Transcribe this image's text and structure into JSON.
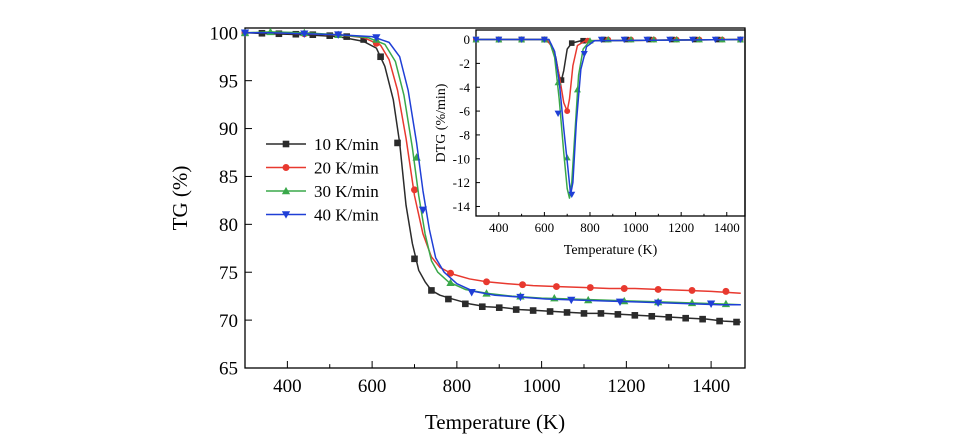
{
  "chart_data": [
    {
      "type": "line",
      "title": "",
      "xlabel": "Temperature (K)",
      "ylabel": "TG (%)",
      "xlim": [
        300,
        1480
      ],
      "ylim": [
        65,
        100.5
      ],
      "xticks": [
        400,
        600,
        800,
        1000,
        1200,
        1400
      ],
      "yticks": [
        65,
        70,
        75,
        80,
        85,
        90,
        95,
        100
      ],
      "legend_position": "middle-left",
      "grid": false,
      "series": [
        {
          "name": "10 K/min",
          "color": "#2b2b2b",
          "marker": "square",
          "x": [
            300,
            360,
            440,
            520,
            580,
            610,
            630,
            650,
            665,
            680,
            695,
            710,
            725,
            740,
            760,
            790,
            830,
            870,
            910,
            950,
            990,
            1030,
            1070,
            1110,
            1150,
            1190,
            1230,
            1270,
            1310,
            1350,
            1390,
            1430,
            1470
          ],
          "y": [
            100,
            99.9,
            99.8,
            99.6,
            99.1,
            98.4,
            96.5,
            93.0,
            88.5,
            82.0,
            78.0,
            75.2,
            74.0,
            73.1,
            72.6,
            72.2,
            71.7,
            71.4,
            71.3,
            71.1,
            71.0,
            70.9,
            70.8,
            70.7,
            70.7,
            70.6,
            70.5,
            70.4,
            70.3,
            70.2,
            70.1,
            69.9,
            69.8
          ],
          "marker_x": [
            300,
            340,
            380,
            420,
            460,
            500,
            540,
            580,
            620,
            660,
            700,
            740,
            780,
            820,
            860,
            900,
            940,
            980,
            1020,
            1060,
            1100,
            1140,
            1180,
            1220,
            1260,
            1300,
            1340,
            1380,
            1420,
            1460
          ],
          "marker_y": [
            100,
            99.95,
            99.9,
            99.85,
            99.8,
            99.7,
            99.6,
            99.3,
            97.5,
            88.5,
            76.4,
            73.1,
            72.2,
            71.7,
            71.4,
            71.3,
            71.1,
            71.0,
            70.9,
            70.8,
            70.7,
            70.7,
            70.6,
            70.5,
            70.4,
            70.3,
            70.2,
            70.1,
            69.9,
            69.8
          ]
        },
        {
          "name": "20 K/min",
          "color": "#e8392f",
          "marker": "circle",
          "x": [
            300,
            360,
            440,
            520,
            580,
            620,
            640,
            660,
            680,
            700,
            720,
            740,
            760,
            790,
            830,
            870,
            920,
            980,
            1040,
            1100,
            1160,
            1220,
            1280,
            1340,
            1400,
            1470
          ],
          "y": [
            100,
            100,
            99.9,
            99.8,
            99.5,
            98.7,
            97.2,
            94.0,
            89.0,
            83.0,
            79.0,
            76.6,
            75.5,
            74.8,
            74.3,
            74.0,
            73.8,
            73.6,
            73.5,
            73.4,
            73.3,
            73.3,
            73.2,
            73.1,
            73.0,
            72.8
          ],
          "marker_x": [
            300,
            440,
            520,
            610,
            700,
            785,
            870,
            955,
            1035,
            1115,
            1195,
            1275,
            1355,
            1435
          ],
          "marker_y": [
            100,
            99.9,
            99.8,
            98.9,
            83.6,
            74.9,
            74.0,
            73.7,
            73.5,
            73.4,
            73.3,
            73.2,
            73.1,
            73.0
          ]
        },
        {
          "name": "30 K/min",
          "color": "#3aa84a",
          "marker": "triangle-up",
          "x": [
            300,
            360,
            440,
            520,
            590,
            630,
            655,
            675,
            695,
            710,
            725,
            740,
            755,
            780,
            820,
            870,
            930,
            1000,
            1070,
            1140,
            1210,
            1280,
            1350,
            1420,
            1470
          ],
          "y": [
            100,
            100.1,
            100,
            99.8,
            99.5,
            98.8,
            97.0,
            93.5,
            88.0,
            83.0,
            79.0,
            76.2,
            75.0,
            74.0,
            73.2,
            72.8,
            72.5,
            72.3,
            72.2,
            72.1,
            72.0,
            71.9,
            71.8,
            71.7,
            71.6
          ],
          "marker_x": [
            300,
            360,
            440,
            520,
            610,
            705,
            785,
            870,
            950,
            1030,
            1110,
            1195,
            1275,
            1355,
            1435
          ],
          "marker_y": [
            100,
            100.1,
            100,
            99.8,
            99.3,
            87.0,
            73.9,
            72.8,
            72.5,
            72.3,
            72.1,
            72.0,
            71.9,
            71.8,
            71.7
          ]
        },
        {
          "name": "40 K/min",
          "color": "#1f3fd6",
          "marker": "triangle-down",
          "x": [
            300,
            360,
            440,
            520,
            600,
            640,
            665,
            685,
            705,
            720,
            735,
            750,
            770,
            800,
            840,
            890,
            950,
            1010,
            1080,
            1150,
            1220,
            1290,
            1360,
            1420,
            1470
          ],
          "y": [
            100,
            100,
            99.9,
            99.8,
            99.6,
            99.0,
            97.5,
            94.0,
            88.5,
            83.5,
            79.5,
            76.5,
            75.0,
            73.8,
            73.0,
            72.6,
            72.4,
            72.2,
            72.1,
            72.0,
            71.9,
            71.8,
            71.7,
            71.6,
            71.6
          ],
          "marker_x": [
            300,
            440,
            520,
            610,
            720,
            835,
            950,
            1070,
            1185,
            1275,
            1400
          ],
          "marker_y": [
            100,
            99.9,
            99.8,
            99.5,
            81.5,
            72.9,
            72.4,
            72.1,
            71.9,
            71.8,
            71.7
          ]
        }
      ]
    },
    {
      "type": "line",
      "title": "",
      "xlabel": "Temperature (K)",
      "ylabel": "DTG (%/min)",
      "xlim": [
        300,
        1480
      ],
      "ylim": [
        -14.8,
        0.8
      ],
      "xticks": [
        400,
        600,
        800,
        1000,
        1200,
        1400
      ],
      "yticks": [
        0,
        -2,
        -4,
        -6,
        -8,
        -10,
        -12,
        -14
      ],
      "grid": false,
      "series": [
        {
          "name": "10 K/min",
          "color": "#2b2b2b",
          "marker": "square",
          "x": [
            300,
            500,
            600,
            630,
            650,
            665,
            675,
            685,
            700,
            720,
            760,
            1470
          ],
          "y": [
            0,
            0,
            0,
            -0.4,
            -1.5,
            -3.1,
            -3.4,
            -2.6,
            -0.8,
            -0.3,
            -0.1,
            0
          ],
          "marker_x": [
            300,
            400,
            500,
            600,
            675,
            720,
            770,
            860,
            960,
            1060,
            1160,
            1260,
            1360,
            1460
          ],
          "marker_y": [
            0,
            0,
            0,
            0,
            -3.4,
            -0.3,
            -0.1,
            0,
            0,
            0,
            0,
            0,
            0,
            0
          ]
        },
        {
          "name": "20 K/min",
          "color": "#e8392f",
          "marker": "circle",
          "x": [
            300,
            500,
            610,
            640,
            665,
            685,
            700,
            710,
            725,
            745,
            780,
            1470
          ],
          "y": [
            0,
            0,
            0,
            -0.8,
            -3.0,
            -5.3,
            -6.0,
            -5.0,
            -2.2,
            -0.5,
            -0.1,
            0
          ],
          "marker_x": [
            300,
            400,
            500,
            600,
            700,
            790,
            880,
            980,
            1080,
            1180,
            1280,
            1380,
            1460
          ],
          "marker_y": [
            0,
            0,
            0,
            0,
            -6.0,
            -0.1,
            0,
            0,
            0,
            0,
            0,
            0,
            0
          ]
        },
        {
          "name": "30 K/min",
          "color": "#3aa84a",
          "marker": "triangle-up",
          "x": [
            300,
            500,
            620,
            645,
            665,
            685,
            700,
            710,
            720,
            735,
            750,
            770,
            800,
            1470
          ],
          "y": [
            0,
            0,
            0,
            -1.5,
            -5.0,
            -9.5,
            -12.5,
            -13.3,
            -12.0,
            -7.5,
            -3.0,
            -0.8,
            -0.1,
            0
          ],
          "marker_x": [
            300,
            400,
            500,
            600,
            660,
            700,
            745,
            800,
            880,
            980,
            1080,
            1180,
            1280,
            1380,
            1460
          ],
          "marker_y": [
            0,
            0,
            0,
            0,
            -3.6,
            -9.9,
            -4.2,
            -0.1,
            0,
            0,
            0,
            0,
            0,
            0,
            0
          ]
        },
        {
          "name": "40 K/min",
          "color": "#1f3fd6",
          "marker": "triangle-down",
          "x": [
            300,
            500,
            620,
            645,
            665,
            685,
            700,
            715,
            725,
            740,
            760,
            785,
            820,
            1470
          ],
          "y": [
            0,
            0,
            0,
            -1.0,
            -3.5,
            -7.5,
            -10.2,
            -13.0,
            -12.0,
            -7.0,
            -2.5,
            -0.6,
            -0.1,
            0
          ],
          "marker_x": [
            300,
            400,
            500,
            600,
            660,
            720,
            775,
            850,
            950,
            1050,
            1150,
            1250,
            1350,
            1460
          ],
          "marker_y": [
            0,
            0,
            0,
            0,
            -6.2,
            -13.0,
            -1.2,
            0,
            0,
            0,
            0,
            0,
            0,
            0
          ]
        }
      ]
    }
  ]
}
